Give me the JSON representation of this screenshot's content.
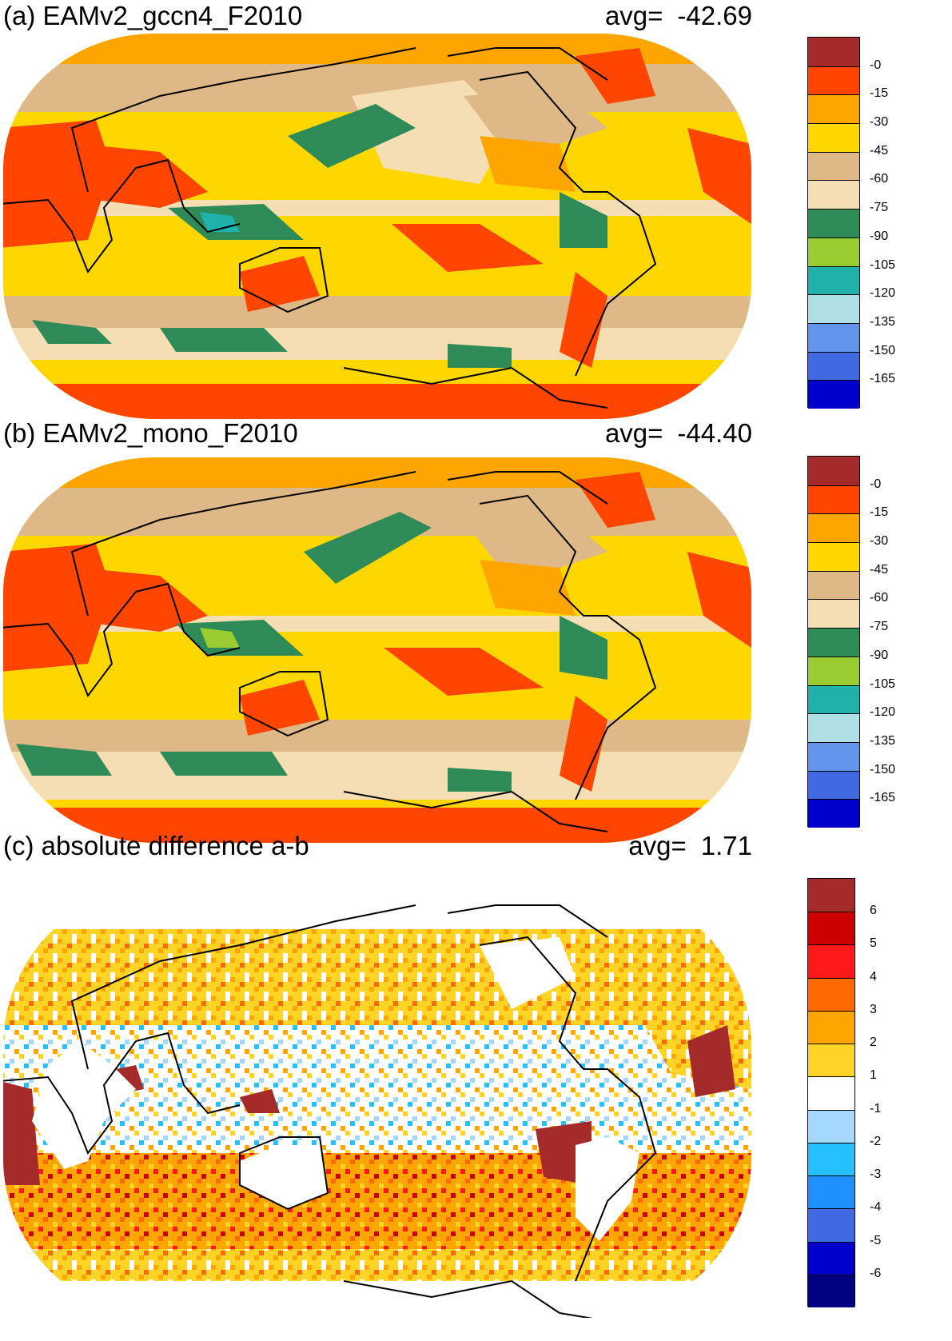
{
  "colors": {
    "ocean_white": "#ffffff",
    "coast": "#000000"
  },
  "panels": [
    {
      "id": "a",
      "title": "(a) EAMv2_gccn4_F2010",
      "avg_label": "avg=",
      "avg_value": "-42.69",
      "colorbar": {
        "labels": [
          "-0",
          "-15",
          "-30",
          "-45",
          "-60",
          "-75",
          "-90",
          "-105",
          "-120",
          "-135",
          "-150",
          "-165"
        ],
        "colors": [
          "#a52a2a",
          "#ff4500",
          "#ffa500",
          "#ffd700",
          "#deb887",
          "#f5deb3",
          "#2e8b57",
          "#9acd32",
          "#20b2aa",
          "#b0e0e6",
          "#6495ed",
          "#4169e1",
          "#0000cd"
        ]
      }
    },
    {
      "id": "b",
      "title": "(b) EAMv2_mono_F2010",
      "avg_label": "avg=",
      "avg_value": "-44.40",
      "colorbar": {
        "labels": [
          "-0",
          "-15",
          "-30",
          "-45",
          "-60",
          "-75",
          "-90",
          "-105",
          "-120",
          "-135",
          "-150",
          "-165"
        ],
        "colors": [
          "#a52a2a",
          "#ff4500",
          "#ffa500",
          "#ffd700",
          "#deb887",
          "#f5deb3",
          "#2e8b57",
          "#9acd32",
          "#20b2aa",
          "#b0e0e6",
          "#6495ed",
          "#4169e1",
          "#0000cd"
        ]
      }
    },
    {
      "id": "c",
      "title": "(c) absolute difference a-b",
      "avg_label": "avg=",
      "avg_value": "1.71",
      "colorbar": {
        "labels": [
          "6",
          "5",
          "4",
          "3",
          "2",
          "1",
          "-1",
          "-2",
          "-3",
          "-4",
          "-5",
          "-6"
        ],
        "colors": [
          "#a52a2a",
          "#cc0000",
          "#ff1a1a",
          "#ff6a00",
          "#ffa500",
          "#ffd426",
          "#ffffff",
          "#a6d8ff",
          "#26bfff",
          "#1e90ff",
          "#4169e1",
          "#0000cd",
          "#000080"
        ]
      }
    }
  ]
}
